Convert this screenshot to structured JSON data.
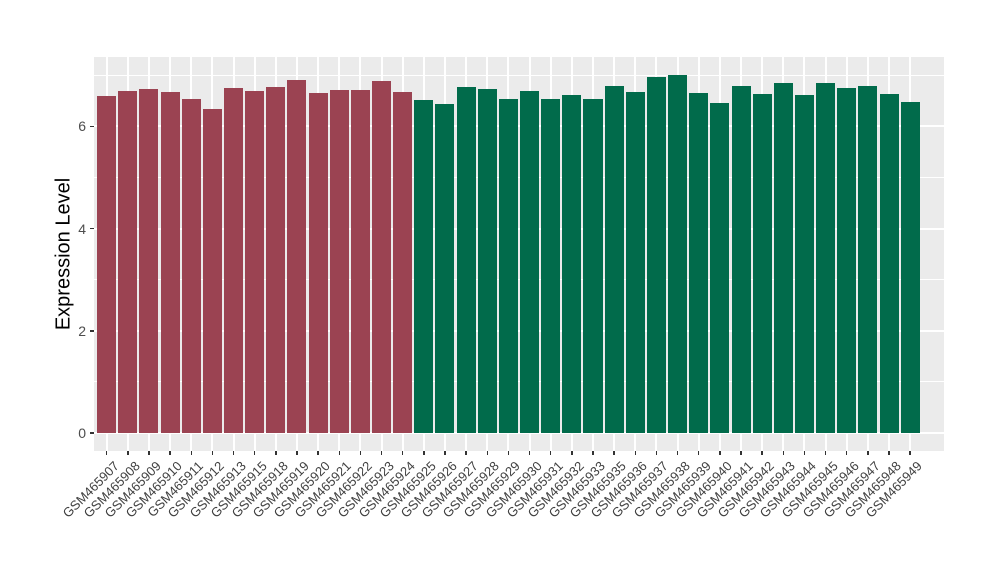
{
  "figure": {
    "background": "#FFFFFF",
    "panel_background": "#EBEBEB",
    "grid_color": "#FFFFFF",
    "axis_text_color": "#4D4D4D",
    "axis_title_color": "#000000",
    "tick_mark_color": "#333333"
  },
  "chart_data": {
    "type": "bar",
    "title": "",
    "xlabel": "",
    "ylabel": "Expression Level",
    "legend": false,
    "grid": true,
    "yticks": [
      0,
      2,
      4,
      6
    ],
    "minor_yticks": [
      1,
      3,
      5,
      7
    ],
    "ylim": [
      0,
      7.36
    ],
    "y_display_range": [
      -0.35,
      7.36
    ],
    "categories": [
      "GSM465907",
      "GSM465908",
      "GSM465909",
      "GSM465910",
      "GSM465911",
      "GSM465912",
      "GSM465913",
      "GSM465915",
      "GSM465918",
      "GSM465919",
      "GSM465920",
      "GSM465921",
      "GSM465922",
      "GSM465923",
      "GSM465924",
      "GSM465925",
      "GSM465926",
      "GSM465927",
      "GSM465928",
      "GSM465929",
      "GSM465930",
      "GSM465931",
      "GSM465932",
      "GSM465933",
      "GSM465935",
      "GSM465936",
      "GSM465937",
      "GSM465938",
      "GSM465939",
      "GSM465940",
      "GSM465941",
      "GSM465942",
      "GSM465943",
      "GSM465944",
      "GSM465945",
      "GSM465946",
      "GSM465947",
      "GSM465948",
      "GSM465949"
    ],
    "values": [
      6.6,
      6.7,
      6.73,
      6.67,
      6.53,
      6.35,
      6.75,
      6.7,
      6.77,
      6.9,
      6.66,
      6.71,
      6.71,
      6.88,
      6.67,
      6.51,
      6.44,
      6.78,
      6.73,
      6.54,
      6.69,
      6.54,
      6.62,
      6.54,
      6.8,
      6.67,
      6.97,
      7.01,
      6.66,
      6.46,
      6.8,
      6.63,
      6.85,
      6.61,
      6.84,
      6.75,
      6.8,
      6.63,
      6.48
    ],
    "group_split_index": 15,
    "group_colors": {
      "left_group": "#9B4352",
      "right_group": "#016B4B"
    }
  }
}
